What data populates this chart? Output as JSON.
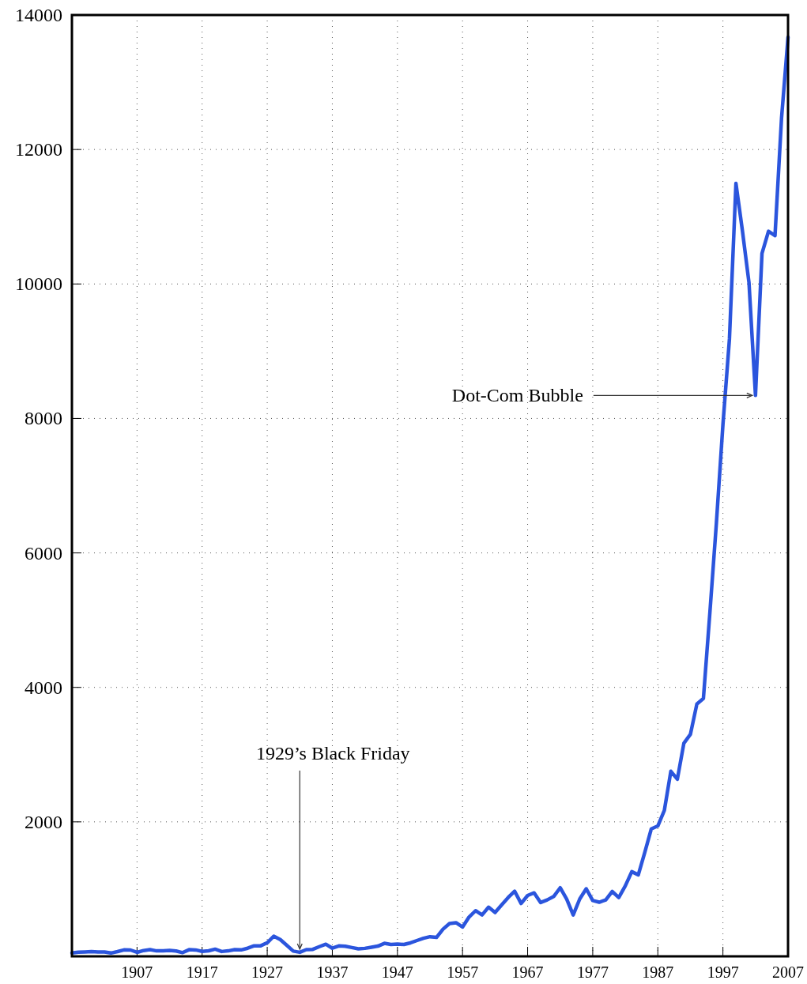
{
  "chart_data": {
    "type": "line",
    "xlim": [
      1897,
      2007
    ],
    "xticks": [
      1907,
      1917,
      1927,
      1937,
      1947,
      1957,
      1967,
      1977,
      1987,
      1997,
      2007
    ],
    "ylim": [
      0,
      14000
    ],
    "yticks": [
      2000,
      4000,
      6000,
      8000,
      10000,
      12000,
      14000
    ],
    "grid": true,
    "x": [
      1897,
      1898,
      1899,
      1900,
      1901,
      1902,
      1903,
      1904,
      1905,
      1906,
      1907,
      1908,
      1909,
      1910,
      1911,
      1912,
      1913,
      1914,
      1915,
      1916,
      1917,
      1918,
      1919,
      1920,
      1921,
      1922,
      1923,
      1924,
      1925,
      1926,
      1927,
      1928,
      1929,
      1930,
      1931,
      1932,
      1933,
      1934,
      1935,
      1936,
      1937,
      1938,
      1939,
      1940,
      1941,
      1942,
      1943,
      1944,
      1945,
      1946,
      1947,
      1948,
      1949,
      1950,
      1951,
      1952,
      1953,
      1954,
      1955,
      1956,
      1957,
      1958,
      1959,
      1960,
      1961,
      1962,
      1963,
      1964,
      1965,
      1966,
      1967,
      1968,
      1969,
      1970,
      1971,
      1972,
      1973,
      1974,
      1975,
      1976,
      1977,
      1978,
      1979,
      1980,
      1981,
      1982,
      1983,
      1984,
      1985,
      1986,
      1987,
      1988,
      1989,
      1990,
      1991,
      1992,
      1993,
      1994,
      1995,
      1996,
      1997,
      1998,
      1999,
      2000,
      2001,
      2002,
      2003,
      2004,
      2005,
      2006,
      2007
    ],
    "series": [
      {
        "color": "#2b55dd",
        "values": [
          49,
          61,
          66,
          71,
          65,
          64,
          49,
          70,
          96,
          94,
          59,
          86,
          99,
          81,
          82,
          88,
          79,
          55,
          99,
          95,
          74,
          82,
          107,
          72,
          81,
          99,
          96,
          121,
          157,
          157,
          202,
          300,
          249,
          165,
          78,
          60,
          100,
          104,
          144,
          180,
          121,
          155,
          150,
          131,
          111,
          119,
          136,
          152,
          193,
          177,
          181,
          177,
          200,
          235,
          269,
          292,
          281,
          404,
          488,
          500,
          436,
          584,
          679,
          616,
          731,
          652,
          763,
          874,
          969,
          786,
          905,
          944,
          800,
          839,
          890,
          1020,
          851,
          616,
          852,
          1005,
          831,
          805,
          839,
          964,
          875,
          1047,
          1259,
          1212,
          1547,
          1896,
          1939,
          2169,
          2753,
          2634,
          3169,
          3301,
          3754,
          3834,
          5117,
          6448,
          7908,
          9181,
          11497,
          10787,
          10022,
          8342,
          10454,
          10783,
          10718,
          12463,
          13670
        ]
      }
    ],
    "annotations": [
      {
        "text": "1929’s Black Friday",
        "x": 1932,
        "y": 60
      },
      {
        "text": "Dot-Com Bubble",
        "x": 2002,
        "y": 8342
      }
    ]
  }
}
